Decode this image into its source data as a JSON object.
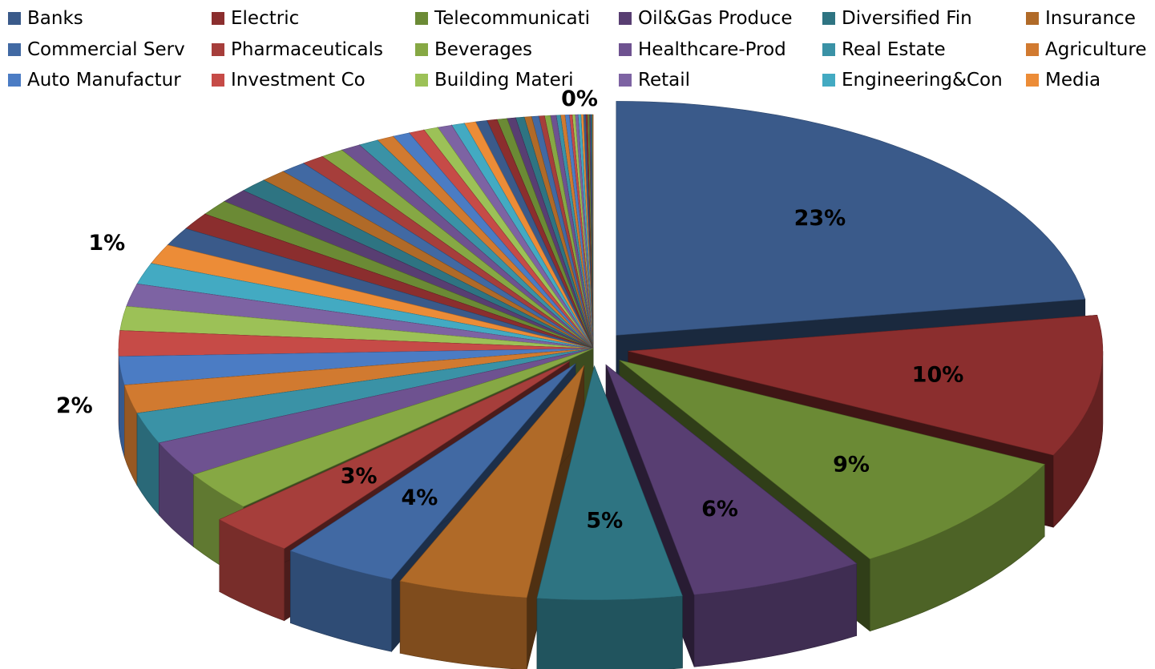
{
  "chart_data": {
    "type": "pie",
    "style": "3d-exploded",
    "legend_position": "top",
    "legend": [
      [
        "Banks",
        "Electric",
        "Telecommunicati",
        "Oil&Gas Produce",
        "Diversified Fin",
        "Insurance"
      ],
      [
        "Commercial Serv",
        "Pharmaceuticals",
        "Beverages",
        "Healthcare-Prod",
        "Real Estate",
        "Agriculture"
      ],
      [
        "Auto Manufactur",
        "Investment Co",
        "Building Materi",
        "Retail",
        "Engineering&Con",
        "Media"
      ]
    ],
    "slices": [
      {
        "name": "Banks",
        "value": 23,
        "label": "23%",
        "color": "#3a5a8a"
      },
      {
        "name": "Electric",
        "value": 10,
        "label": "10%",
        "color": "#8b2e2e"
      },
      {
        "name": "Telecommunicati",
        "value": 9,
        "label": "9%",
        "color": "#6b8a35"
      },
      {
        "name": "Oil&Gas Produce",
        "value": 6,
        "label": "6%",
        "color": "#583e72"
      },
      {
        "name": "Diversified Fin",
        "value": 5,
        "label": "5%",
        "color": "#2e7482"
      },
      {
        "name": "Insurance",
        "value": 4.5,
        "label": "",
        "color": "#b06a28"
      },
      {
        "name": "Commercial Serv",
        "value": 4,
        "label": "4%",
        "color": "#4169a3"
      },
      {
        "name": "Pharmaceuticals",
        "value": 3,
        "label": "3%",
        "color": "#a63e3b"
      },
      {
        "name": "Beverages",
        "value": 2.8,
        "label": "",
        "color": "#86a844"
      },
      {
        "name": "Healthcare-Prod",
        "value": 2.5,
        "label": "",
        "color": "#6e5290"
      },
      {
        "name": "Real Estate",
        "value": 2.2,
        "label": "",
        "color": "#3a92a6"
      },
      {
        "name": "Agriculture",
        "value": 2,
        "label": "2%",
        "color": "#d17a30"
      },
      {
        "name": "Auto Manufactur",
        "value": 2,
        "label": "",
        "color": "#4b7cc4"
      },
      {
        "name": "Investment Co",
        "value": 1.8,
        "label": "",
        "color": "#c64b47"
      },
      {
        "name": "Building Materi",
        "value": 1.7,
        "label": "",
        "color": "#9cc157"
      },
      {
        "name": "Retail",
        "value": 1.6,
        "label": "",
        "color": "#7d63a3"
      },
      {
        "name": "Engineering&Con",
        "value": 1.5,
        "label": "",
        "color": "#43aac2"
      },
      {
        "name": "Media",
        "value": 1.4,
        "label": "1%",
        "color": "#ec8c37"
      }
    ],
    "other_slices": {
      "count": 42,
      "values": [
        1.3,
        1.2,
        1.1,
        1,
        1,
        0.9,
        0.9,
        0.8,
        0.8,
        0.7,
        0.7,
        0.6,
        0.6,
        0.55,
        0.5,
        0.5,
        0.45,
        0.4,
        0.4,
        0.35,
        0.35,
        0.3,
        0.3,
        0.25,
        0.25,
        0.2,
        0.2,
        0.2,
        0.15,
        0.15,
        0.15,
        0.1,
        0.1,
        0.1,
        0.1,
        0.08,
        0.08,
        0.06,
        0.06,
        0.05,
        0.05,
        0.04
      ],
      "last_label": "0%"
    }
  },
  "palette": [
    "#3a5a8a",
    "#8b2e2e",
    "#6b8a35",
    "#583e72",
    "#2e7482",
    "#b06a28",
    "#4169a3",
    "#a63e3b",
    "#86a844",
    "#6e5290",
    "#3a92a6",
    "#d17a30",
    "#4b7cc4",
    "#c64b47",
    "#9cc157",
    "#7d63a3",
    "#43aac2",
    "#ec8c37"
  ]
}
